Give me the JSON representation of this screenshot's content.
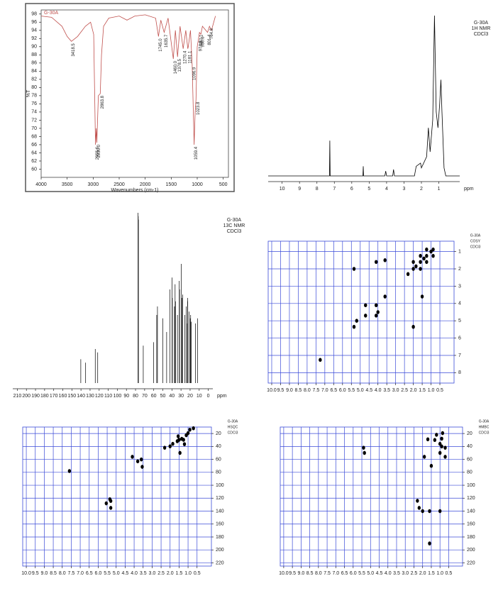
{
  "chart_data": [
    {
      "type": "line",
      "title": "G-30A",
      "x_label": "Wavenumbers (cm-1)",
      "y_label": "%T",
      "xlim": [
        4000,
        400
      ],
      "xticks": [
        4000,
        3500,
        3000,
        2500,
        2000,
        1500,
        1000,
        500
      ],
      "ylim": [
        58,
        99
      ],
      "yticks": [
        60,
        62,
        64,
        66,
        68,
        70,
        72,
        74,
        76,
        78,
        80,
        82,
        84,
        86,
        88,
        90,
        92,
        94,
        96,
        98
      ],
      "color": "#c0504d",
      "x": [
        4000,
        3800,
        3600,
        3500,
        3418.5,
        3300,
        3150,
        3050,
        2990,
        2955.6,
        2940,
        2930,
        2900,
        2863.8,
        2840,
        2800,
        2700,
        2500,
        2350,
        2200,
        2000,
        1800,
        1745,
        1700,
        1635.7,
        1560,
        1460,
        1420,
        1378.5,
        1330,
        1270.4,
        1220,
        1181.1,
        1172,
        1130,
        1096.9,
        1059.4,
        1040,
        1023.8,
        1000,
        974.9,
        957.1,
        930.6,
        900,
        801.4,
        764.8,
        726,
        650
      ],
      "values": [
        97.5,
        97.2,
        95,
        92.5,
        91.3,
        92.5,
        95,
        96,
        93,
        66,
        70,
        66.5,
        78,
        78.5,
        88,
        95,
        97,
        97.5,
        96.5,
        97.5,
        97.8,
        97,
        92.5,
        96.5,
        93.5,
        97,
        87,
        94,
        87.5,
        95,
        89.5,
        94,
        89.5,
        90,
        94,
        85.5,
        66,
        74,
        77,
        90,
        92,
        93.5,
        93,
        95,
        93.5,
        95,
        94,
        97.5
      ],
      "peak_labels": [
        3418.5,
        2955.6,
        {
          "value": 2930,
          "label": "2930.0"
        },
        2863.8,
        {
          "value": 1745,
          "label": "1745.0"
        },
        1635.7,
        {
          "value": 1460,
          "label": "1460.0"
        },
        1378.5,
        1270.4,
        1181.1,
        1096.9,
        1059.4,
        1023.8,
        974.9,
        957.1,
        930.6,
        801.4,
        764.8
      ]
    },
    {
      "type": "line",
      "sample_label": [
        "G-30A",
        "1H NMR",
        "CDCl3"
      ],
      "x_label": "ppm",
      "xlim": [
        10.8,
        -0.2
      ],
      "xticks": [
        10,
        9,
        8,
        7,
        6,
        5,
        4,
        3,
        2,
        1
      ],
      "ylim": [
        0,
        100
      ],
      "color": "#000000",
      "x": [
        10.8,
        7.28,
        7.26,
        7.24,
        5.36,
        5.34,
        5.32,
        4.1,
        4.05,
        4.0,
        3.65,
        3.6,
        3.55,
        2.4,
        2.3,
        2.05,
        2.0,
        1.7,
        1.6,
        1.5,
        1.35,
        1.25,
        1.15,
        1.05,
        0.95,
        0.88,
        0.82,
        0.7,
        0.6,
        -0.2
      ],
      "values": [
        0,
        0,
        22,
        0,
        0,
        6,
        0,
        0,
        3,
        0,
        0,
        4,
        0,
        0,
        6,
        8,
        5,
        12,
        30,
        15,
        35,
        100,
        40,
        30,
        45,
        60,
        40,
        5,
        0,
        0
      ]
    },
    {
      "type": "stem",
      "sample_label": [
        "G-30A",
        "13C NMR",
        "CDCl3"
      ],
      "x_label": "ppm",
      "xlim": [
        215,
        -5
      ],
      "xticks": [
        210,
        200,
        190,
        180,
        170,
        160,
        150,
        140,
        130,
        120,
        110,
        100,
        90,
        80,
        70,
        60,
        50,
        40,
        30,
        20,
        10,
        0
      ],
      "ylim": [
        0,
        100
      ],
      "color": "#000000",
      "x": [
        140.2,
        134.9,
        124.3,
        121.6,
        77.2,
        77.0,
        76.8,
        71.5,
        60.1,
        56.7,
        55.9,
        50.1,
        45.8,
        42.3,
        39.8,
        39.5,
        37.2,
        36.5,
        36.1,
        33.9,
        31.9,
        31.6,
        29.7,
        29.1,
        28.2,
        25.9,
        24.3,
        23.0,
        22.7,
        22.6,
        21.1,
        19.8,
        19.4,
        18.7,
        14.1,
        11.9
      ],
      "values": [
        14,
        12,
        20,
        18,
        100,
        98,
        96,
        22,
        24,
        40,
        45,
        38,
        30,
        55,
        62,
        50,
        45,
        58,
        48,
        40,
        60,
        55,
        70,
        50,
        52,
        40,
        45,
        35,
        50,
        48,
        42,
        38,
        40,
        36,
        35,
        38
      ]
    },
    {
      "type": "scatter",
      "sample_label": [
        "G-30A",
        "COSY",
        "CDCl3"
      ],
      "grid": true,
      "grid_color": "#3b4bd8",
      "color": "#000000",
      "xlim": [
        10.2,
        -0.3
      ],
      "xticks": [
        {
          "value": 10,
          "label": "10.0"
        },
        9.5,
        {
          "value": 9,
          "label": "9.0"
        },
        8.5,
        {
          "value": 8,
          "label": "8.0"
        },
        7.5,
        {
          "value": 7,
          "label": "7.0"
        },
        6.5,
        {
          "value": 6,
          "label": "6.0"
        },
        5.5,
        {
          "value": 5,
          "label": "5.0"
        },
        4.5,
        {
          "value": 4,
          "label": "4.0"
        },
        3.5,
        {
          "value": 3,
          "label": "3.0"
        },
        2.5,
        {
          "value": 2,
          "label": "2.0"
        },
        1.5,
        {
          "value": 1,
          "label": "1.0"
        },
        0.5
      ],
      "ylim": [
        8.6,
        0.4
      ],
      "yticks": [
        1,
        2,
        3,
        4,
        5,
        6,
        7,
        8
      ],
      "x": [
        0.88,
        1.0,
        1.25,
        1.4,
        1.6,
        1.85,
        2.0,
        2.3,
        3.6,
        4.1,
        4.7,
        5.35,
        7.26,
        1.25,
        0.88,
        1.6,
        1.25,
        2.0,
        1.6,
        5.35,
        2.0,
        3.6,
        1.5,
        4.1,
        4.7,
        4.1,
        5.2,
        4.0
      ],
      "y": [
        0.88,
        1.0,
        1.25,
        1.4,
        1.6,
        1.85,
        2.0,
        2.3,
        3.6,
        4.1,
        4.7,
        5.35,
        7.26,
        0.88,
        1.25,
        1.25,
        1.6,
        1.6,
        2.0,
        2.0,
        5.35,
        1.5,
        3.6,
        1.6,
        4.1,
        4.7,
        5.0,
        4.5
      ]
    },
    {
      "type": "scatter",
      "sample_label": [
        "G-30A",
        "HSQC",
        "CDCl3"
      ],
      "grid": true,
      "grid_color": "#3b4bd8",
      "color": "#000000",
      "xlim": [
        10.2,
        -0.3
      ],
      "xticks": [
        {
          "value": 10,
          "label": "10.0"
        },
        9.5,
        {
          "value": 9,
          "label": "9.0"
        },
        8.5,
        {
          "value": 8,
          "label": "8.0"
        },
        7.5,
        {
          "value": 7,
          "label": "7.0"
        },
        6.5,
        {
          "value": 6,
          "label": "6.0"
        },
        5.5,
        {
          "value": 5,
          "label": "5.0"
        },
        4.5,
        {
          "value": 4,
          "label": "4.0"
        },
        3.5,
        {
          "value": 3,
          "label": "3.0"
        },
        2.5,
        {
          "value": 2,
          "label": "2.0"
        },
        1.5,
        {
          "value": 1,
          "label": "1.0"
        },
        0.5
      ],
      "ylim": [
        225,
        10
      ],
      "yticks": [
        20,
        40,
        60,
        80,
        100,
        120,
        140,
        160,
        180,
        200,
        220
      ],
      "x": [
        5.35,
        5.3,
        5.55,
        5.3,
        3.55,
        3.6,
        4.1,
        3.8,
        7.6,
        2.3,
        2.0,
        1.85,
        1.6,
        1.5,
        1.35,
        1.25,
        1.1,
        1.0,
        0.9,
        0.7,
        1.2,
        1.55,
        1.45
      ],
      "y": [
        121.6,
        124.3,
        128,
        135,
        71.5,
        60.1,
        56,
        63,
        78,
        42,
        39.8,
        36,
        31.9,
        29.7,
        28.2,
        29.7,
        22.7,
        19.4,
        14.1,
        11.9,
        36.5,
        24.3,
        50
      ]
    },
    {
      "type": "scatter",
      "sample_label": [
        "G-30A",
        "HMBC",
        "CDCl3"
      ],
      "grid": true,
      "grid_color": "#3b4bd8",
      "color": "#000000",
      "xlim": [
        10.2,
        -0.3
      ],
      "xticks": [
        {
          "value": 10,
          "label": "10.0"
        },
        9.5,
        {
          "value": 9,
          "label": "9.0"
        },
        8.5,
        {
          "value": 8,
          "label": "8.0"
        },
        7.5,
        {
          "value": 7,
          "label": "7.0"
        },
        6.5,
        {
          "value": 6,
          "label": "6.0"
        },
        5.5,
        {
          "value": 5,
          "label": "5.0"
        },
        4.5,
        {
          "value": 4,
          "label": "4.0"
        },
        3.5,
        {
          "value": 3,
          "label": "3.0"
        },
        2.5,
        {
          "value": 2,
          "label": "2.0"
        },
        1.5,
        {
          "value": 1,
          "label": "1.0"
        },
        0.5
      ],
      "ylim": [
        225,
        10
      ],
      "yticks": [
        20,
        40,
        60,
        80,
        100,
        120,
        140,
        160,
        180,
        200,
        220
      ],
      "x": [
        5.4,
        5.35,
        2.3,
        2.0,
        2.2,
        1.6,
        1.0,
        1.3,
        1.2,
        1.0,
        0.9,
        0.85,
        0.7,
        0.7,
        1.0,
        0.9,
        1.9,
        1.7,
        1.6,
        1.5
      ],
      "y": [
        42,
        50,
        124,
        140,
        135,
        140,
        140,
        30,
        22,
        36,
        40,
        19.4,
        56,
        42,
        50,
        28,
        56,
        29,
        190,
        70
      ]
    }
  ]
}
